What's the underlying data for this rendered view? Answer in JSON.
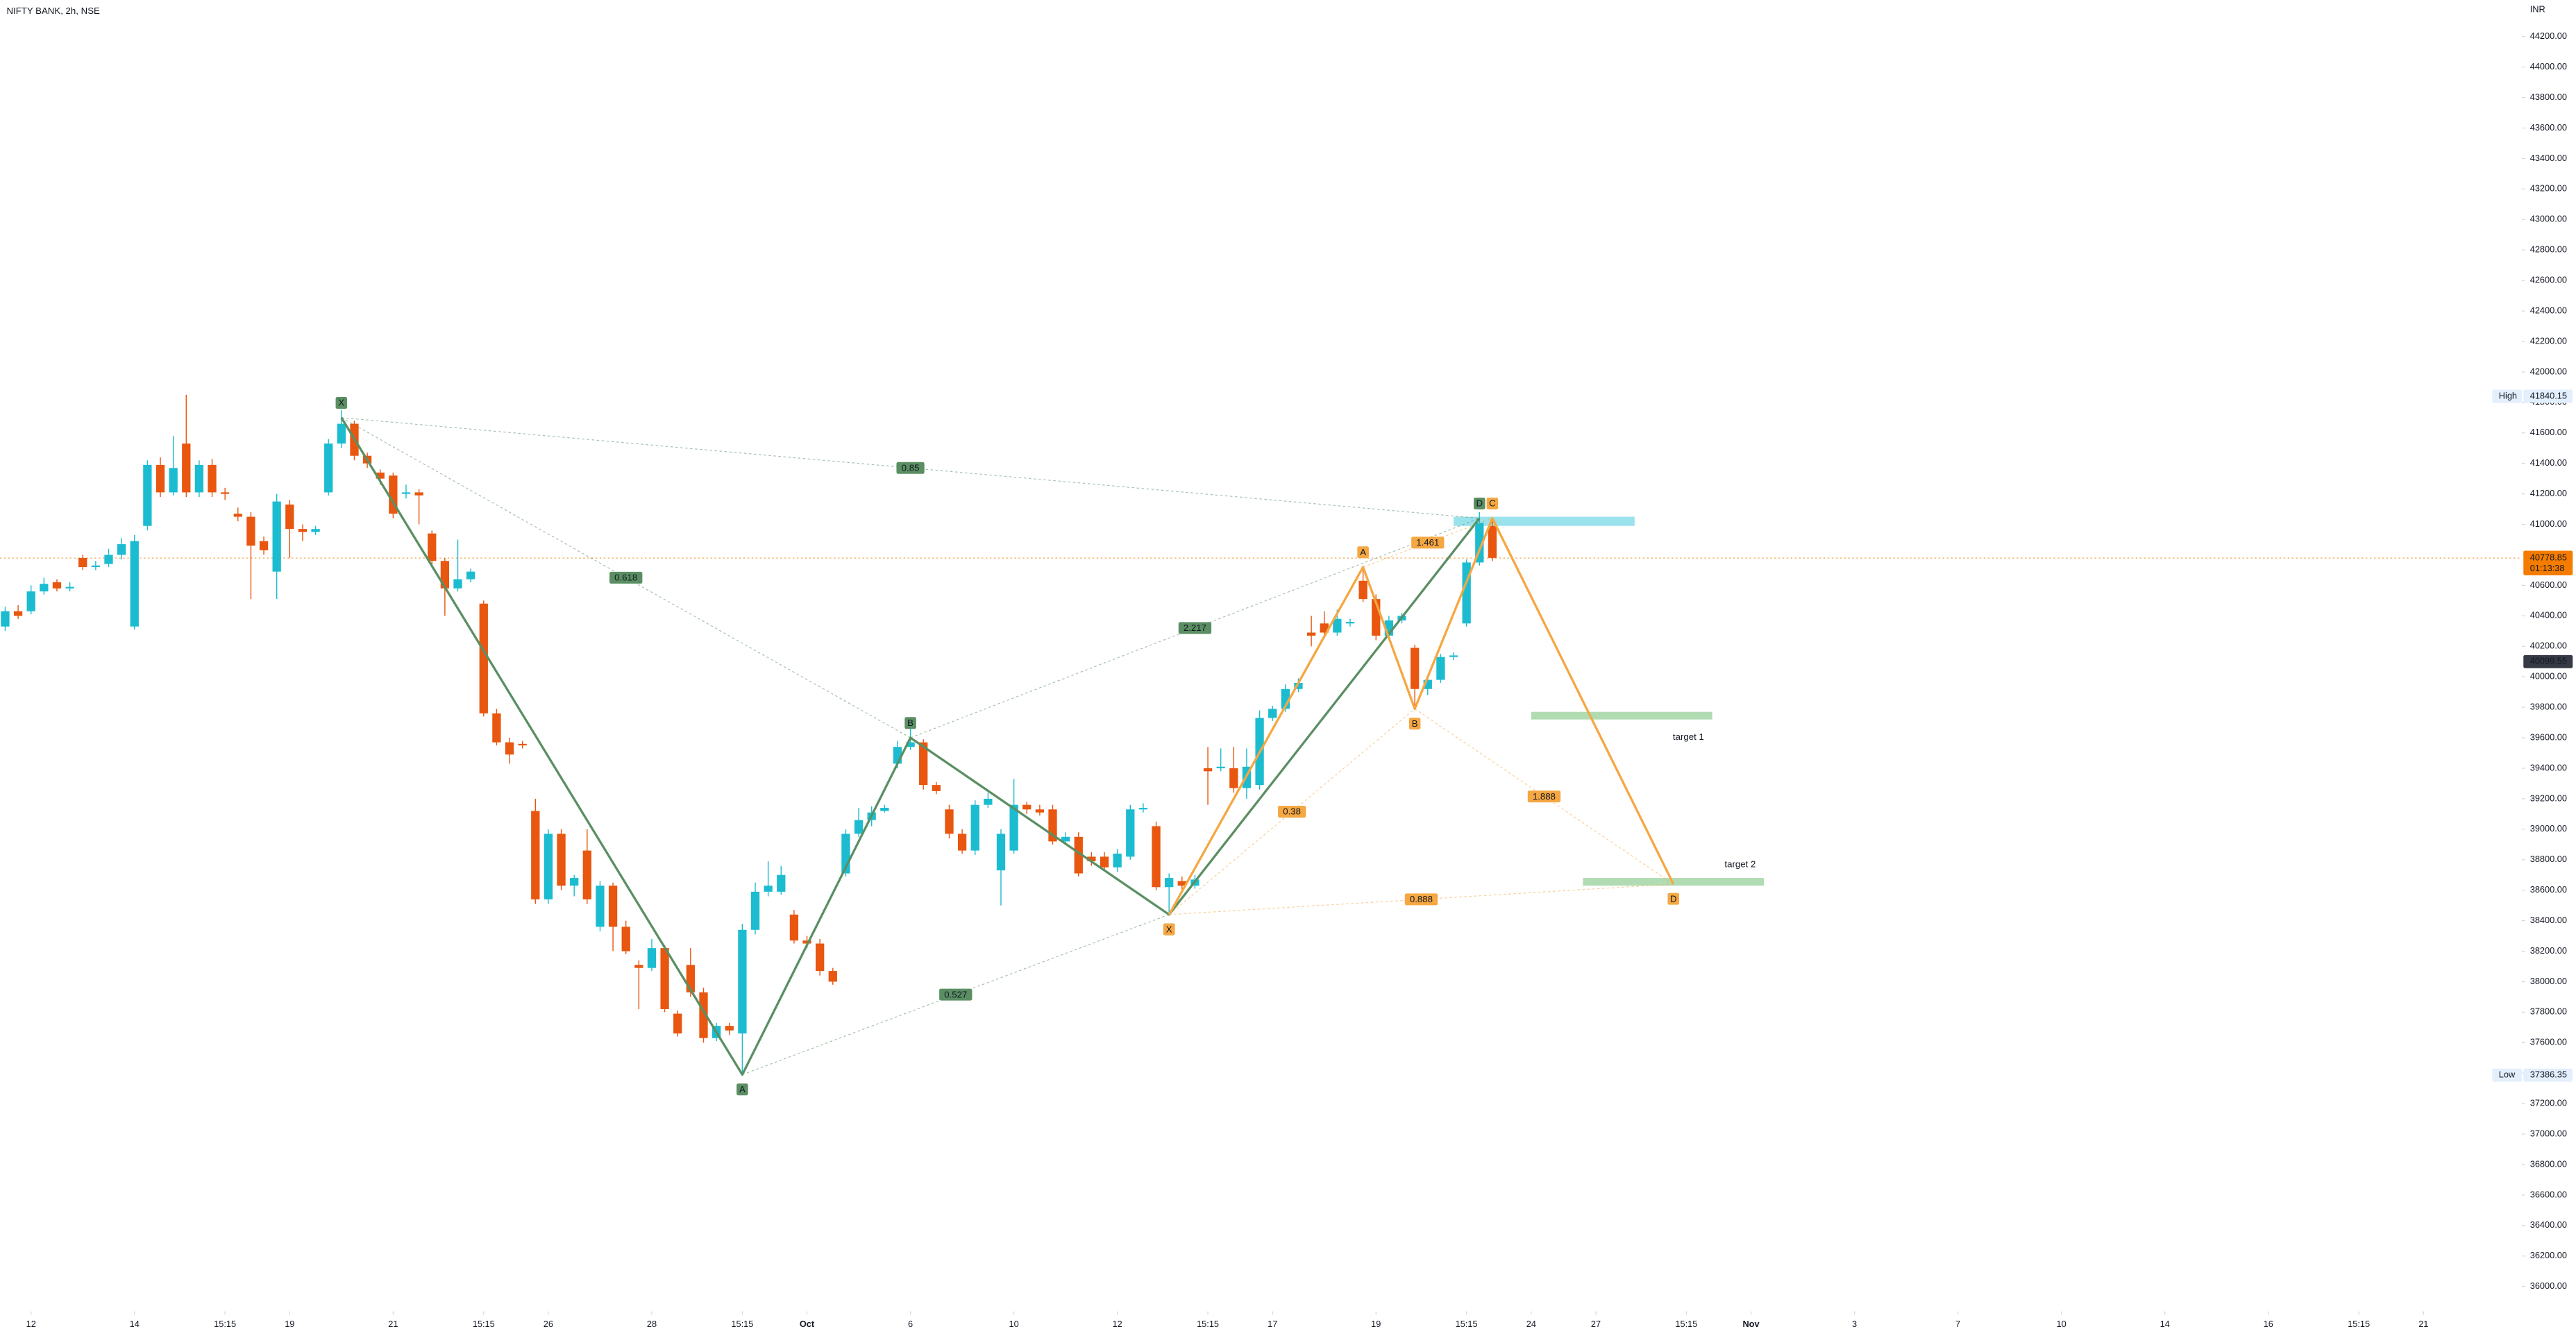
{
  "chart_data": {
    "type": "candlestick",
    "title": "NIFTY BANK, 2h, NSE",
    "currency": "INR",
    "up_color": "#1cbcd0",
    "down_color": "#e8560f",
    "grid": false,
    "xlim": [
      -0.4,
      194.6
    ],
    "ylim": [
      35880,
      44440
    ],
    "xticks": [
      {
        "value": 2,
        "label": "12"
      },
      {
        "value": 10,
        "label": "14"
      },
      {
        "value": 17,
        "label": "15:15"
      },
      {
        "value": 22,
        "label": "19"
      },
      {
        "value": 30,
        "label": "21"
      },
      {
        "value": 37,
        "label": "15:15"
      },
      {
        "value": 42,
        "label": "26"
      },
      {
        "value": 50,
        "label": "28"
      },
      {
        "value": 57,
        "label": "15:15"
      },
      {
        "value": 62,
        "label": "Oct"
      },
      {
        "value": 70,
        "label": "6"
      },
      {
        "value": 78,
        "label": "10"
      },
      {
        "value": 86,
        "label": "12"
      },
      {
        "value": 93,
        "label": "15:15"
      },
      {
        "value": 98,
        "label": "17"
      },
      {
        "value": 106,
        "label": "19"
      },
      {
        "value": 113,
        "label": "15:15"
      },
      {
        "value": 118,
        "label": "24"
      },
      {
        "value": 123,
        "label": "27"
      },
      {
        "value": 130,
        "label": "15:15"
      },
      {
        "value": 135,
        "label": "Nov"
      },
      {
        "value": 143,
        "label": "3"
      },
      {
        "value": 151,
        "label": "7"
      },
      {
        "value": 159,
        "label": "10"
      },
      {
        "value": 167,
        "label": "14"
      },
      {
        "value": 175,
        "label": "16"
      },
      {
        "value": 182,
        "label": "15:15"
      },
      {
        "value": 187,
        "label": "21"
      }
    ],
    "yticks": [
      {
        "value": 36000,
        "label": "36000.00"
      },
      {
        "value": 36200,
        "label": "36200.00"
      },
      {
        "value": 36400,
        "label": "36400.00"
      },
      {
        "value": 36600,
        "label": "36600.00"
      },
      {
        "value": 36800,
        "label": "36800.00"
      },
      {
        "value": 37000,
        "label": "37000.00"
      },
      {
        "value": 37200,
        "label": "37200.00"
      },
      {
        "value": 37400,
        "label": "37400.00"
      },
      {
        "value": 37600,
        "label": "37600.00"
      },
      {
        "value": 37800,
        "label": "37800.00"
      },
      {
        "value": 38000,
        "label": "38000.00"
      },
      {
        "value": 38200,
        "label": "38200.00"
      },
      {
        "value": 38400,
        "label": "38400.00"
      },
      {
        "value": 38600,
        "label": "38600.00"
      },
      {
        "value": 38800,
        "label": "38800.00"
      },
      {
        "value": 39000,
        "label": "39000.00"
      },
      {
        "value": 39200,
        "label": "39200.00"
      },
      {
        "value": 39400,
        "label": "39400.00"
      },
      {
        "value": 39600,
        "label": "39600.00"
      },
      {
        "value": 39800,
        "label": "39800.00"
      },
      {
        "value": 40000,
        "label": "40000.00"
      },
      {
        "value": 40200,
        "label": "40200.00"
      },
      {
        "value": 40400,
        "label": "40400.00"
      },
      {
        "value": 40600,
        "label": "40600.00"
      },
      {
        "value": 40800,
        "label": "40800.00"
      },
      {
        "value": 41000,
        "label": "41000.00"
      },
      {
        "value": 41200,
        "label": "41200.00"
      },
      {
        "value": 41400,
        "label": "41400.00"
      },
      {
        "value": 41600,
        "label": "41600.00"
      },
      {
        "value": 41800,
        "label": "41800.00"
      },
      {
        "value": 42000,
        "label": "42000.00"
      },
      {
        "value": 42200,
        "label": "42200.00"
      },
      {
        "value": 42400,
        "label": "42400.00"
      },
      {
        "value": 42600,
        "label": "42600.00"
      },
      {
        "value": 42800,
        "label": "42800.00"
      },
      {
        "value": 43000,
        "label": "43000.00"
      },
      {
        "value": 43200,
        "label": "43200.00"
      },
      {
        "value": 43400,
        "label": "43400.00"
      },
      {
        "value": 43600,
        "label": "43600.00"
      },
      {
        "value": 43800,
        "label": "43800.00"
      },
      {
        "value": 44000,
        "label": "44000.00"
      },
      {
        "value": 44200,
        "label": "44200.00"
      }
    ],
    "open": [
      40330,
      40430,
      40430,
      40560,
      40620,
      40580,
      40780,
      40720,
      40740,
      40800,
      40330,
      40990,
      41390,
      41210,
      41530,
      41210,
      41390,
      41210,
      41070,
      41050,
      40890,
      40690,
      41130,
      40970,
      40950,
      41210,
      41530,
      41660,
      41450,
      41340,
      41320,
      41200,
      41210,
      40940,
      40760,
      40580,
      40640,
      40480,
      39760,
      39570,
      39560,
      39120,
      38540,
      38970,
      38630,
      38860,
      38360,
      38630,
      38360,
      38110,
      38090,
      38220,
      37790,
      38110,
      37930,
      37630,
      37710,
      37660,
      38340,
      38590,
      38590,
      38440,
      38270,
      38250,
      38070,
      38710,
      38970,
      39060,
      39120,
      39430,
      39540,
      39570,
      39290,
      39130,
      38970,
      38860,
      39160,
      38730,
      38860,
      39160,
      39130,
      39130,
      38920,
      38950,
      38820,
      38820,
      38750,
      38820,
      39130,
      39020,
      38620,
      38660,
      38630,
      39400,
      39400,
      39400,
      39270,
      39290,
      39730,
      39790,
      39920,
      40290,
      40350,
      40290,
      40350,
      40630,
      40510,
      40270,
      40370,
      40190,
      39920,
      39980,
      40130,
      40350,
      40750,
      40990
    ],
    "high": [
      40460,
      40470,
      40600,
      40650,
      40640,
      40620,
      40800,
      40760,
      40840,
      40910,
      40930,
      41420,
      41440,
      41580,
      41850,
      41420,
      41430,
      41240,
      41110,
      41080,
      40920,
      41200,
      41160,
      41000,
      40990,
      41560,
      41750,
      41680,
      41470,
      41360,
      41340,
      41260,
      41230,
      40960,
      40780,
      40900,
      40710,
      40500,
      39790,
      39600,
      39580,
      39200,
      39000,
      39000,
      38700,
      39000,
      38660,
      38650,
      38400,
      38140,
      38280,
      38240,
      37810,
      38220,
      37960,
      37730,
      37730,
      38380,
      38650,
      38790,
      38760,
      38470,
      38300,
      38280,
      38090,
      39000,
      39140,
      39150,
      39160,
      39580,
      39680,
      39590,
      39310,
      39160,
      39000,
      39190,
      39240,
      39000,
      39330,
      39180,
      39160,
      39160,
      38980,
      38980,
      38850,
      38850,
      38870,
      39160,
      39170,
      39050,
      38710,
      38690,
      38700,
      39540,
      39530,
      39540,
      39530,
      39780,
      39810,
      39950,
      39990,
      40400,
      40430,
      40440,
      40380,
      40720,
      40540,
      40400,
      40420,
      40210,
      40000,
      40150,
      40160,
      40770,
      41080,
      41030
    ],
    "low": [
      40300,
      40380,
      40410,
      40540,
      40560,
      40560,
      40700,
      40700,
      40720,
      40770,
      40310,
      40960,
      41180,
      41190,
      41180,
      41180,
      41180,
      41160,
      41020,
      40510,
      40800,
      40510,
      40780,
      40890,
      40930,
      41190,
      41500,
      41420,
      41370,
      41260,
      41040,
      41170,
      41000,
      40730,
      40400,
      40560,
      40620,
      39740,
      39550,
      39430,
      39530,
      38510,
      38510,
      38600,
      38560,
      38510,
      38330,
      38200,
      38180,
      37820,
      38070,
      37800,
      37640,
      37900,
      37600,
      37610,
      37650,
      37390,
      38310,
      38560,
      38570,
      38250,
      38220,
      38040,
      37980,
      38690,
      38950,
      39020,
      39110,
      39400,
      39520,
      39260,
      39230,
      38940,
      38840,
      38830,
      39140,
      38500,
      38840,
      39100,
      39090,
      38900,
      38900,
      38690,
      38760,
      38730,
      38720,
      38800,
      39110,
      38600,
      38450,
      38600,
      38610,
      39160,
      39380,
      39240,
      39200,
      39260,
      39710,
      39770,
      39900,
      40200,
      40270,
      40270,
      40330,
      40490,
      40240,
      40250,
      40350,
      39790,
      39880,
      39960,
      40110,
      40330,
      40730,
      40760
    ],
    "close": [
      40430,
      40400,
      40560,
      40610,
      40580,
      40590,
      40720,
      40730,
      40800,
      40870,
      40890,
      41390,
      41210,
      41370,
      41210,
      41390,
      41210,
      41200,
      41050,
      40860,
      40830,
      41150,
      40970,
      40950,
      40970,
      41530,
      41660,
      41450,
      41400,
      41300,
      41070,
      41210,
      41190,
      40760,
      40580,
      40640,
      40690,
      39760,
      39570,
      39490,
      39550,
      38540,
      38970,
      38630,
      38680,
      38540,
      38630,
      38360,
      38200,
      38090,
      38220,
      37820,
      37660,
      37930,
      37630,
      37710,
      37680,
      38340,
      38590,
      38630,
      38700,
      38270,
      38250,
      38070,
      38000,
      38970,
      39060,
      39110,
      39140,
      39540,
      39570,
      39290,
      39250,
      38970,
      38860,
      39160,
      39200,
      38970,
      39160,
      39130,
      39110,
      38920,
      38950,
      38710,
      38790,
      38750,
      38840,
      39130,
      39140,
      38620,
      38680,
      38630,
      38670,
      39380,
      39410,
      39270,
      39410,
      39730,
      39790,
      39920,
      39960,
      40270,
      40290,
      40380,
      40360,
      40510,
      40270,
      40370,
      40400,
      39920,
      39980,
      40130,
      40140,
      40750,
      41010,
      40780
    ],
    "patterns": [
      {
        "color": "#5b8f63",
        "points": [
          {
            "label": "X",
            "x": 26,
            "y": 41700
          },
          {
            "label": "A",
            "x": 57,
            "y": 37390
          },
          {
            "label": "B",
            "x": 70,
            "y": 39600
          },
          {
            "label": "C",
            "x": 90,
            "y": 38440
          },
          {
            "label": "D",
            "x": 114,
            "y": 41040
          }
        ],
        "ratios": [
          "0.618",
          "0.527",
          "2.217",
          "0.85"
        ]
      },
      {
        "color": "#f5a742",
        "points": [
          {
            "label": "X",
            "x": 90,
            "y": 38440
          },
          {
            "label": "A",
            "x": 105,
            "y": 40720
          },
          {
            "label": "B",
            "x": 109,
            "y": 39790
          },
          {
            "label": "C",
            "x": 115,
            "y": 41040
          },
          {
            "label": "D",
            "x": 129,
            "y": 38640
          }
        ],
        "ratios": [
          "0.38",
          "1.461",
          "1.888",
          "0.888"
        ]
      }
    ],
    "zones": [
      {
        "top": 41050,
        "bottom": 40990,
        "start": 112,
        "end": 126,
        "color": "#8fdfea"
      },
      {
        "label": "target 1",
        "top": 39770,
        "bottom": 39720,
        "start": 118,
        "end": 132,
        "color": "#a9d8ab"
      },
      {
        "label": "target 2",
        "top": 38680,
        "bottom": 38630,
        "start": 122,
        "end": 136,
        "color": "#a9d8ab"
      }
    ],
    "high_marker": {
      "tag": "High",
      "value": 41840.15
    },
    "low_marker": {
      "tag": "Low",
      "value": 37386.35
    },
    "last_price": {
      "value": 40778.85,
      "countdown": "01:13:38",
      "color": "#f57c00"
    },
    "crosshair_price": {
      "value": 40099.55
    }
  }
}
